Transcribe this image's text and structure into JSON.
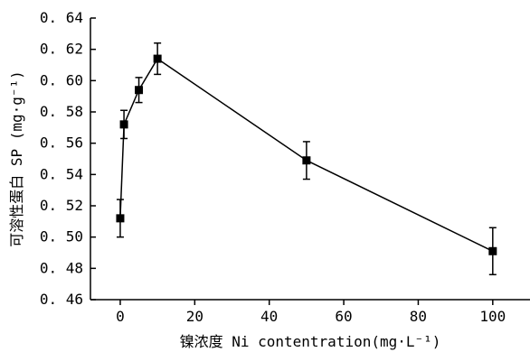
{
  "chart_data": {
    "type": "line",
    "title": "",
    "xlabel": "镍浓度 Ni contentration(mg·L⁻¹)",
    "ylabel": "可溶性蛋白 SP (mg·g⁻¹)",
    "xlim": [
      -8,
      110
    ],
    "ylim": [
      0.46,
      0.64
    ],
    "xticks": [
      0,
      20,
      40,
      60,
      80,
      100
    ],
    "yticks": [
      0.46,
      0.48,
      0.5,
      0.52,
      0.54,
      0.56,
      0.58,
      0.6,
      0.62,
      0.64
    ],
    "xtick_labels": [
      "0",
      "20",
      "40",
      "60",
      "80",
      "100"
    ],
    "ytick_labels": [
      "0. 46",
      "0. 48",
      "0. 50",
      "0. 52",
      "0. 54",
      "0. 56",
      "0. 58",
      "0. 60",
      "0. 62",
      "0. 64"
    ],
    "series": [
      {
        "marker": "square",
        "x": [
          0,
          1,
          5,
          10,
          50,
          100
        ],
        "y": [
          0.512,
          0.572,
          0.594,
          0.614,
          0.549,
          0.491
        ],
        "err": [
          0.012,
          0.009,
          0.008,
          0.01,
          0.012,
          0.015
        ]
      }
    ],
    "grid": false,
    "legend": "none"
  }
}
